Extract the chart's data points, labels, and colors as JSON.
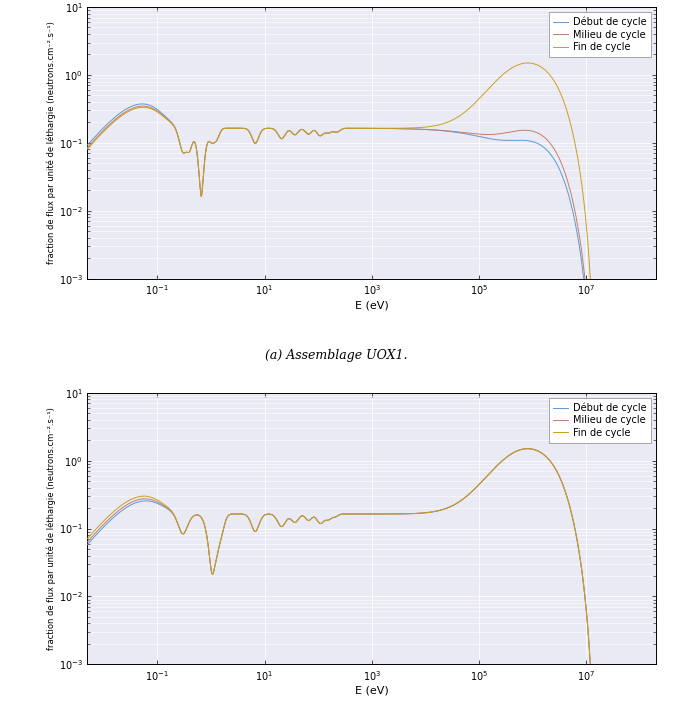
{
  "xlim": [
    0.005,
    200000000.0
  ],
  "ylim": [
    0.001,
    10.0
  ],
  "xlabel": "E (eV)",
  "ylabel": "fraction de flux par unité de léthargie (neutrons.cm⁻².s⁻¹)",
  "legend_labels": [
    "Début de cycle",
    "Milieu de cycle",
    "Fin de cycle"
  ],
  "colors": [
    "#5b9bd5",
    "#c97b6a",
    "#c9a020"
  ],
  "subtitle_top": "(a) Assemblage UOX1.",
  "background_color": "#eaeaf4",
  "grid_color": "#ffffff",
  "linewidth": 0.7
}
